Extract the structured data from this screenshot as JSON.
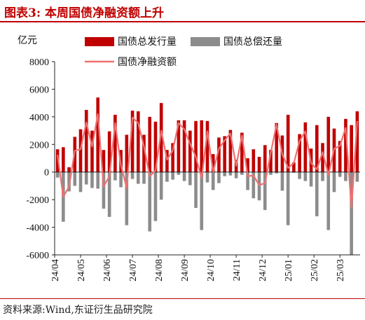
{
  "figure": {
    "title": "图表3: 本周国债净融资额上升",
    "source": "资料来源:Wind,东证衍生品研究院"
  },
  "colors": {
    "issuance": "#c00000",
    "redemption": "#8c8c8c",
    "net": "#f07070",
    "accent": "#c00000"
  },
  "chart_data": {
    "type": "bar",
    "title": "",
    "ylabel": "亿元",
    "xlabel": "",
    "ylim": [
      -6000,
      8000
    ],
    "yticks": [
      8000,
      6000,
      4000,
      2000,
      0,
      -2000,
      -4000,
      -6000
    ],
    "grid": false,
    "legend_position": "top",
    "month_ticks": [
      {
        "label": "24/04",
        "at": 0
      },
      {
        "label": "24/05",
        "at": 4.5
      },
      {
        "label": "24/06",
        "at": 9
      },
      {
        "label": "24/07",
        "at": 13.5
      },
      {
        "label": "24/08",
        "at": 18
      },
      {
        "label": "24/09",
        "at": 22.5
      },
      {
        "label": "24/10",
        "at": 27
      },
      {
        "label": "24/11",
        "at": 31.5
      },
      {
        "label": "24/12",
        "at": 36
      },
      {
        "label": "25/01",
        "at": 40.5
      },
      {
        "label": "25/02",
        "at": 45
      },
      {
        "label": "25/03",
        "at": 49.5
      }
    ],
    "series": [
      {
        "name": "国债总发行量",
        "kind": "bar",
        "values": [
          1650,
          1800,
          350,
          2550,
          3100,
          4500,
          3000,
          5400,
          1600,
          2950,
          4150,
          1600,
          2700,
          4450,
          4400,
          2700,
          4000,
          3650,
          5000,
          1600,
          2100,
          3750,
          3750,
          3000,
          3700,
          3750,
          3700,
          1300,
          2500,
          2600,
          3050,
          900,
          2850,
          1000,
          1650,
          1100,
          1950,
          1600,
          3550,
          2650,
          4150,
          700,
          2750,
          3600,
          1700,
          3400,
          2100,
          4000,
          3150,
          2250,
          3850,
          3400,
          4400
        ]
      },
      {
        "name": "国债总偿还量",
        "kind": "bar",
        "values": [
          -400,
          -3600,
          -1400,
          -1000,
          -1450,
          -900,
          -1150,
          -1200,
          -2650,
          -3250,
          -600,
          -1100,
          -3850,
          -500,
          -850,
          -850,
          -4300,
          -3550,
          -2000,
          -700,
          -550,
          -200,
          -650,
          -950,
          -2600,
          -4200,
          -750,
          -1300,
          -800,
          -300,
          -250,
          -450,
          -200,
          -1300,
          -1900,
          -2050,
          -2750,
          -200,
          -100,
          -1350,
          -3850,
          -50,
          -500,
          -650,
          -1050,
          -3200,
          -650,
          -4200,
          -1450,
          -350,
          -650,
          -6000,
          -700
        ]
      },
      {
        "name": "国债净融资额",
        "kind": "line",
        "values": [
          1250,
          -1800,
          -1050,
          1550,
          1650,
          3600,
          1850,
          4200,
          -1050,
          -300,
          3550,
          500,
          -1150,
          3950,
          3550,
          1850,
          -300,
          100,
          3000,
          900,
          1550,
          3550,
          3100,
          2050,
          1100,
          -450,
          2950,
          0,
          1700,
          2300,
          2800,
          450,
          2650,
          -300,
          -250,
          -950,
          -800,
          1400,
          3450,
          1300,
          300,
          650,
          2250,
          2950,
          650,
          200,
          1450,
          -200,
          1700,
          1900,
          3200,
          -2600,
          3700
        ]
      }
    ]
  }
}
